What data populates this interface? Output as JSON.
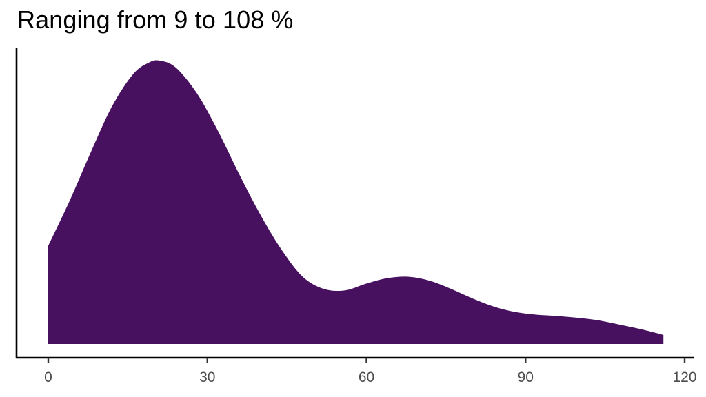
{
  "chart_data": {
    "type": "area",
    "subtype": "density",
    "title": "Ranging from 9 to 108 %",
    "xlabel": "",
    "ylabel": "",
    "fill_color": "#481160",
    "xlim": [
      -2,
      122
    ],
    "x_ticks": [
      0,
      30,
      60,
      90,
      120
    ],
    "x_tick_labels": [
      "0",
      "30",
      "60",
      "90",
      "120"
    ],
    "y_ticks": [],
    "grid": false,
    "legend": "none",
    "series": [
      {
        "name": "density",
        "x": [
          0,
          4,
          8,
          12,
          16,
          19,
          21,
          24,
          28,
          32,
          36,
          40,
          44,
          48,
          52,
          56,
          60,
          64,
          68,
          72,
          76,
          80,
          84,
          88,
          92,
          96,
          100,
          104,
          108,
          112,
          116
        ],
        "y": [
          0.315,
          0.48,
          0.66,
          0.83,
          0.95,
          0.993,
          1.0,
          0.975,
          0.88,
          0.74,
          0.58,
          0.43,
          0.3,
          0.2,
          0.155,
          0.15,
          0.175,
          0.195,
          0.2,
          0.185,
          0.155,
          0.12,
          0.09,
          0.07,
          0.06,
          0.055,
          0.048,
          0.038,
          0.022,
          0.005,
          -0.015
        ]
      }
    ]
  }
}
